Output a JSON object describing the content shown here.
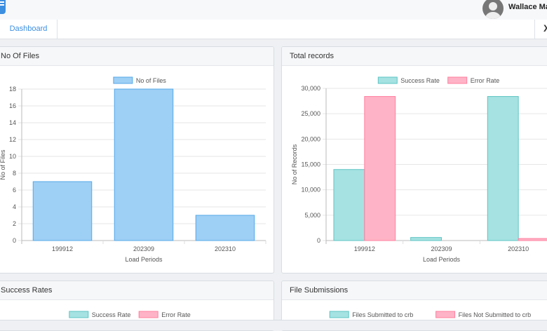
{
  "header": {
    "user_name": "Wallace Mac",
    "menu_icon": "menu-icon",
    "avatar_icon": "user-avatar-icon"
  },
  "tabs": [
    {
      "label": "Dashboard"
    }
  ],
  "tab_close_glyph": "X",
  "panels": {
    "files": {
      "title": "No Of Files"
    },
    "records": {
      "title": "Total records"
    },
    "success_rates": {
      "title": "Success Rates"
    },
    "submissions": {
      "title": "File Submissions"
    }
  },
  "colors": {
    "blue_fill": "#9ecff5",
    "blue_stroke": "#55a8e8",
    "teal_fill": "#a6e2e2",
    "teal_stroke": "#5ec4c4",
    "pink_fill": "#ffb3c6",
    "pink_stroke": "#ff7f9f",
    "grid": "#e6e6e6"
  },
  "chart_data": [
    {
      "type": "bar",
      "categories": [
        "199912",
        "202309",
        "202310"
      ],
      "series": [
        {
          "name": "No of Files",
          "color": "#9ecff5",
          "values": [
            7,
            18,
            3
          ]
        }
      ],
      "xlabel": "Load Periods",
      "ylabel": "No of Files",
      "ylim": [
        0,
        18
      ],
      "yticks": [
        0,
        2,
        4,
        6,
        8,
        10,
        12,
        14,
        16,
        18
      ],
      "legend": "top-center",
      "grid": true
    },
    {
      "type": "bar",
      "categories": [
        "199912",
        "202309",
        "202310"
      ],
      "series": [
        {
          "name": "Success Rate",
          "color": "#a6e2e2",
          "values": [
            14000,
            600,
            28400
          ]
        },
        {
          "name": "Error Rate",
          "color": "#ffb3c6",
          "values": [
            28400,
            0,
            400
          ]
        }
      ],
      "xlabel": "Load Periods",
      "ylabel": "No of Records",
      "ylim": [
        0,
        30000
      ],
      "yticks": [
        "0",
        "5,000",
        "10,000",
        "15,000",
        "20,000",
        "25,000",
        "30,000"
      ],
      "legend": "top-center",
      "grid": true
    },
    {
      "type": "bar",
      "series": [
        {
          "name": "Success Rate",
          "color": "#a6e2e2"
        },
        {
          "name": "Error Rate",
          "color": "#ffb3c6"
        }
      ],
      "legend": "top-center"
    },
    {
      "type": "bar",
      "series": [
        {
          "name": "Files Submitted to crb",
          "color": "#a6e2e2"
        },
        {
          "name": "Files Not Submitted to crb",
          "color": "#ffb3c6"
        }
      ],
      "legend": "top-center"
    }
  ]
}
